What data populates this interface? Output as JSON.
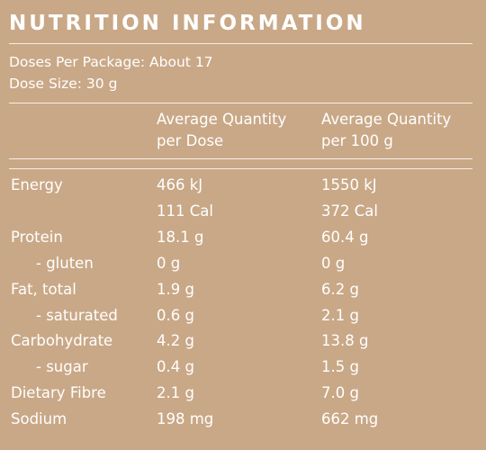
{
  "title": "NUTRITION INFORMATION",
  "doses_per_package": "Doses Per Package: About 17",
  "dose_size": "Dose Size: 30 g",
  "columns": {
    "per_dose_line1": "Average Quantity",
    "per_dose_line2": "per Dose",
    "per_100g_line1": "Average Quantity",
    "per_100g_line2": "per 100 g"
  },
  "rows": [
    {
      "label": "Energy",
      "per_dose": "466 kJ",
      "per_100g": "1550 kJ"
    },
    {
      "label": "",
      "per_dose": "111 Cal",
      "per_100g": "372 Cal"
    },
    {
      "label": "Protein",
      "per_dose": "18.1 g",
      "per_100g": "60.4 g"
    },
    {
      "label": "- gluten",
      "per_dose": "0 g",
      "per_100g": "0 g"
    },
    {
      "label": "Fat, total",
      "per_dose": "1.9 g",
      "per_100g": "6.2 g"
    },
    {
      "label": "- saturated",
      "per_dose": "0.6 g",
      "per_100g": "2.1 g"
    },
    {
      "label": "Carbohydrate",
      "per_dose": "4.2 g",
      "per_100g": "13.8 g"
    },
    {
      "label": "- sugar",
      "per_dose": "0.4 g",
      "per_100g": "1.5 g"
    },
    {
      "label": "Dietary Fibre",
      "per_dose": "2.1 g",
      "per_100g": "7.0 g"
    },
    {
      "label": "Sodium",
      "per_dose": "198 mg",
      "per_100g": "662 mg"
    }
  ],
  "colors": {
    "background": "#c9a887",
    "text": "#ffffff"
  }
}
